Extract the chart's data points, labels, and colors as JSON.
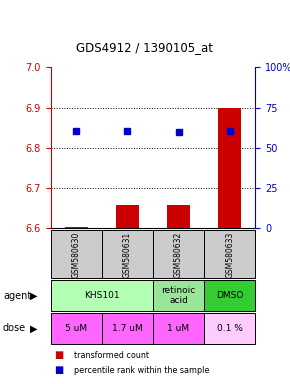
{
  "title": "GDS4912 / 1390105_at",
  "samples": [
    "GSM580630",
    "GSM580631",
    "GSM580632",
    "GSM580633"
  ],
  "bar_values": [
    6.604,
    6.658,
    6.658,
    6.9
  ],
  "bar_bottom": 6.6,
  "dot_values": [
    6.843,
    6.843,
    6.84,
    6.843
  ],
  "ylim": [
    6.6,
    7.0
  ],
  "yticks_left": [
    6.6,
    6.7,
    6.8,
    6.9,
    7.0
  ],
  "yticks_right": [
    0,
    25,
    50,
    75,
    100
  ],
  "bar_color": "#cc0000",
  "dot_color": "#0000cc",
  "agent_info": [
    [
      0,
      2,
      "KHS101",
      "#b3ffb3"
    ],
    [
      2,
      1,
      "retinoic\nacid",
      "#99e699"
    ],
    [
      3,
      1,
      "DMSO",
      "#33cc33"
    ]
  ],
  "dose_labels": [
    "5 uM",
    "1.7 uM",
    "1 uM",
    "0.1 %"
  ],
  "dose_colors": [
    "#ff66ff",
    "#ff66ff",
    "#ff66ff",
    "#ffccff"
  ],
  "sample_bg": "#cccccc",
  "left_label_color": "#cc0000",
  "right_label_color": "#0000cc",
  "bar_width": 0.45
}
